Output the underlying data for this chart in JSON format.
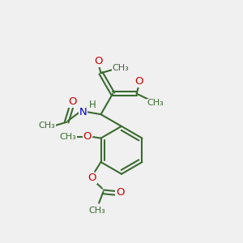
{
  "bg_color": "#f0f0f0",
  "bond_color": "#3a6b30",
  "oxygen_color": "#cc0000",
  "nitrogen_color": "#0000cc",
  "line_width": 1.5,
  "font_size": 8.5,
  "figsize": [
    3.0,
    3.0
  ],
  "dpi": 100,
  "xlim": [
    0,
    10
  ],
  "ylim": [
    0,
    10
  ]
}
